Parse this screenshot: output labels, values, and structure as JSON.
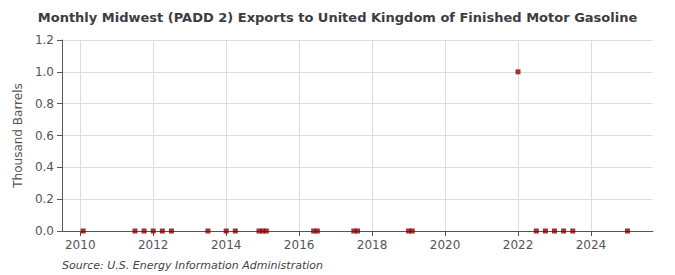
{
  "chart_data": {
    "type": "scatter",
    "title": "Monthly Midwest (PADD 2) Exports to United Kingdom of Finished Motor Gasoline",
    "ylabel": "Thousand Barrels",
    "annotation": "Source: U.S. Energy Information Administration",
    "x": [
      2010.08,
      2011.5,
      2011.75,
      2012.0,
      2012.25,
      2012.5,
      2013.5,
      2014.0,
      2014.25,
      2014.9,
      2015.0,
      2015.1,
      2016.4,
      2016.5,
      2017.5,
      2017.6,
      2019.0,
      2019.1,
      2022.0,
      2022.5,
      2022.75,
      2023.0,
      2023.25,
      2023.5,
      2025.0
    ],
    "values": [
      0.0,
      0.0,
      0.0,
      0.0,
      0.0,
      0.0,
      0.0,
      0.0,
      0.0,
      0.0,
      0.0,
      0.0,
      0.0,
      0.0,
      0.0,
      0.0,
      0.0,
      0.0,
      1.0,
      0.0,
      0.0,
      0.0,
      0.0,
      0.0,
      0.0
    ],
    "color": "#8b0000",
    "marker": "square",
    "xlim": [
      2009.5,
      2025.7
    ],
    "xticks": [
      2010,
      2012,
      2014,
      2016,
      2018,
      2020,
      2022,
      2024
    ],
    "ylim": [
      0.0,
      1.2
    ],
    "yticks": [
      {
        "value": 0.0,
        "label": "0.0"
      },
      0.2,
      0.4,
      0.6,
      0.8,
      {
        "value": 1.0,
        "label": "1.0"
      },
      1.2
    ],
    "grid": true
  }
}
